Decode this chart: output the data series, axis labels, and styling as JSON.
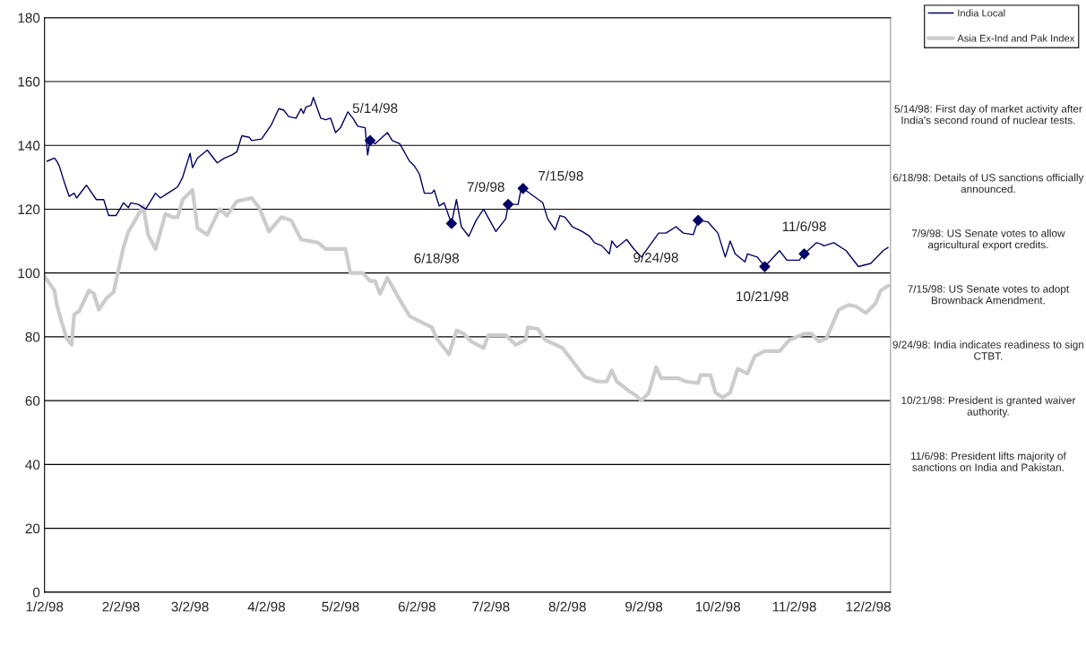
{
  "chart_data": {
    "type": "line",
    "xlim": [
      "1998-01-02",
      "1998-12-11"
    ],
    "ylim": [
      0,
      180
    ],
    "xticks": [
      {
        "value": "1998-01-02",
        "label": "1/2/98"
      },
      {
        "value": "1998-02-02",
        "label": "2/2/98"
      },
      {
        "value": "1998-03-02",
        "label": "3/2/98"
      },
      {
        "value": "1998-04-02",
        "label": "4/2/98"
      },
      {
        "value": "1998-05-02",
        "label": "5/2/98"
      },
      {
        "value": "1998-06-02",
        "label": "6/2/98"
      },
      {
        "value": "1998-07-02",
        "label": "7/2/98"
      },
      {
        "value": "1998-08-02",
        "label": "8/2/98"
      },
      {
        "value": "1998-09-02",
        "label": "9/2/98"
      },
      {
        "value": "1998-10-02",
        "label": "10/2/98"
      },
      {
        "value": "1998-11-02",
        "label": "11/2/98"
      },
      {
        "value": "1998-12-02",
        "label": "12/2/98"
      }
    ],
    "yticks": [
      0,
      20,
      40,
      60,
      80,
      100,
      120,
      140,
      160,
      180
    ],
    "grid": "y",
    "legend": "top right",
    "series": [
      {
        "name": "India Local",
        "color": "#000066",
        "x": [
          "1998-01-03",
          "1998-01-06",
          "1998-01-07",
          "1998-01-08",
          "1998-01-10",
          "1998-01-12",
          "1998-01-14",
          "1998-01-15",
          "1998-01-19",
          "1998-01-23",
          "1998-01-26",
          "1998-01-28",
          "1998-01-31",
          "1998-02-03",
          "1998-02-05",
          "1998-02-06",
          "1998-02-09",
          "1998-02-12",
          "1998-02-16",
          "1998-02-18",
          "1998-02-20",
          "1998-02-23",
          "1998-02-25",
          "1998-02-27",
          "1998-03-02",
          "1998-03-03",
          "1998-03-05",
          "1998-03-09",
          "1998-03-13",
          "1998-03-16",
          "1998-03-19",
          "1998-03-21",
          "1998-03-23",
          "1998-03-26",
          "1998-03-27",
          "1998-03-31",
          "1998-04-04",
          "1998-04-07",
          "1998-04-09",
          "1998-04-11",
          "1998-04-14",
          "1998-04-16",
          "1998-04-17",
          "1998-04-18",
          "1998-04-20",
          "1998-04-21",
          "1998-04-24",
          "1998-04-26",
          "1998-04-28",
          "1998-04-30",
          "1998-05-02",
          "1998-05-05",
          "1998-05-07",
          "1998-05-09",
          "1998-05-12",
          "1998-05-13",
          "1998-05-14",
          "1998-05-16",
          "1998-05-21",
          "1998-05-23",
          "1998-05-26",
          "1998-05-30",
          "1998-06-01",
          "1998-06-03",
          "1998-06-05",
          "1998-06-08",
          "1998-06-09",
          "1998-06-11",
          "1998-06-13",
          "1998-06-16",
          "1998-06-18",
          "1998-06-20",
          "1998-06-23",
          "1998-06-26",
          "1998-06-29",
          "1998-07-04",
          "1998-07-08",
          "1998-07-09",
          "1998-07-13",
          "1998-07-14",
          "1998-07-15",
          "1998-07-23",
          "1998-07-25",
          "1998-07-28",
          "1998-07-30",
          "1998-08-01",
          "1998-08-04",
          "1998-08-08",
          "1998-08-11",
          "1998-08-13",
          "1998-08-16",
          "1998-08-19",
          "1998-08-20",
          "1998-08-22",
          "1998-08-26",
          "1998-08-29",
          "1998-09-01",
          "1998-09-08",
          "1998-09-11",
          "1998-09-15",
          "1998-09-18",
          "1998-09-22",
          "1998-09-24",
          "1998-09-28",
          "1998-10-02",
          "1998-10-05",
          "1998-10-07",
          "1998-10-09",
          "1998-10-13",
          "1998-10-14",
          "1998-10-18",
          "1998-10-21",
          "1998-10-27",
          "1998-10-30",
          "1998-11-04",
          "1998-11-06",
          "1998-11-11",
          "1998-11-13",
          "1998-11-14",
          "1998-11-18",
          "1998-11-23",
          "1998-11-28",
          "1998-12-03",
          "1998-12-08",
          "1998-12-10"
        ],
        "values": [
          135,
          136,
          135,
          133.5,
          128.5,
          124,
          125,
          123.5,
          127.5,
          123,
          123,
          118,
          118,
          122,
          120.5,
          122,
          121.5,
          120,
          125,
          123.5,
          124.5,
          126,
          127,
          130,
          137.5,
          133,
          136,
          138.5,
          134.5,
          136,
          137,
          138,
          143,
          142.5,
          141.5,
          142,
          146.5,
          151.5,
          151,
          149,
          148.5,
          151.5,
          150,
          152,
          152.5,
          155,
          148.5,
          148,
          148.5,
          144,
          145.5,
          150.5,
          148.5,
          146,
          145.5,
          137,
          141.5,
          140.5,
          144,
          141.5,
          140.5,
          135,
          133.5,
          131,
          125,
          125,
          126,
          121,
          122,
          115.5,
          123,
          114.5,
          111.5,
          116.5,
          120,
          113,
          117,
          121.5,
          121.5,
          125.5,
          126.5,
          122,
          117,
          113.5,
          118,
          117.5,
          114.5,
          113,
          111.5,
          109.5,
          108.5,
          106,
          110,
          108,
          110.5,
          107.5,
          105,
          112.5,
          112.5,
          114.5,
          112.5,
          112,
          116.5,
          116,
          112.5,
          105,
          110,
          106,
          103.5,
          106,
          105,
          102,
          107,
          104,
          104,
          106,
          109.5,
          109,
          108.5,
          109.5,
          107,
          102,
          103,
          107,
          108
        ]
      },
      {
        "name": "Asia Ex-Ind and Pak Index",
        "color": "#cccccc",
        "x": [
          "1998-01-02",
          "1998-01-06",
          "1998-01-07",
          "1998-01-09",
          "1998-01-11",
          "1998-01-13",
          "1998-01-14",
          "1998-01-16",
          "1998-01-20",
          "1998-01-22",
          "1998-01-24",
          "1998-01-27",
          "1998-01-30",
          "1998-02-01",
          "1998-02-03",
          "1998-02-05",
          "1998-02-07",
          "1998-02-11",
          "1998-02-13",
          "1998-02-16",
          "1998-02-20",
          "1998-02-23",
          "1998-02-25",
          "1998-02-27",
          "1998-03-03",
          "1998-03-05",
          "1998-03-09",
          "1998-03-14",
          "1998-03-17",
          "1998-03-21",
          "1998-03-27",
          "1998-03-30",
          "1998-04-03",
          "1998-04-08",
          "1998-04-12",
          "1998-04-16",
          "1998-04-23",
          "1998-04-26",
          "1998-05-04",
          "1998-05-06",
          "1998-05-11",
          "1998-05-14",
          "1998-05-16",
          "1998-05-18",
          "1998-05-21",
          "1998-05-25",
          "1998-05-30",
          "1998-06-04",
          "1998-06-08",
          "1998-06-10",
          "1998-06-15",
          "1998-06-18",
          "1998-06-21",
          "1998-06-24",
          "1998-06-29",
          "1998-07-01",
          "1998-07-08",
          "1998-07-12",
          "1998-07-16",
          "1998-07-17",
          "1998-07-21",
          "1998-07-24",
          "1998-07-31",
          "1998-08-05",
          "1998-08-09",
          "1998-08-14",
          "1998-08-18",
          "1998-08-20",
          "1998-08-22",
          "1998-08-27",
          "1998-08-30",
          "1998-09-01",
          "1998-09-04",
          "1998-09-07",
          "1998-09-09",
          "1998-09-16",
          "1998-09-19",
          "1998-09-24",
          "1998-09-25",
          "1998-09-29",
          "1998-10-01",
          "1998-10-04",
          "1998-10-07",
          "1998-10-10",
          "1998-10-14",
          "1998-10-17",
          "1998-10-21",
          "1998-10-27",
          "1998-10-31",
          "1998-11-06",
          "1998-11-09",
          "1998-11-12",
          "1998-11-15",
          "1998-11-20",
          "1998-11-24",
          "1998-11-27",
          "1998-12-01",
          "1998-12-05",
          "1998-12-07",
          "1998-12-10"
        ],
        "values": [
          99,
          94.5,
          90,
          84.5,
          79.5,
          77.5,
          87,
          88,
          94.5,
          93.5,
          88.5,
          92,
          94,
          101,
          108,
          113,
          115.5,
          121,
          112,
          107.5,
          118.5,
          117.5,
          117.5,
          123,
          126,
          114,
          112,
          120,
          118,
          122.5,
          123.5,
          120.5,
          113,
          117.5,
          116.5,
          110.5,
          109.5,
          107.5,
          107.5,
          100,
          100,
          97.5,
          97.5,
          93.5,
          98.5,
          93,
          86.5,
          84.5,
          83,
          79.5,
          74.5,
          82,
          81,
          78.5,
          76.5,
          80.5,
          80.5,
          77.5,
          79,
          83,
          82.5,
          79,
          76.5,
          71.5,
          67.5,
          66,
          66,
          69.5,
          66,
          63,
          61.5,
          60,
          62.5,
          70.5,
          67,
          67,
          66,
          65.5,
          68,
          68,
          62.5,
          61,
          62.5,
          70,
          68.5,
          74,
          75.5,
          75.5,
          79,
          81,
          81,
          78.5,
          79.5,
          88.5,
          90,
          89.5,
          87.5,
          90.5,
          94.5,
          96
        ]
      },
      {
        "type": "scatter",
        "color": "#000066",
        "marker": "diamond",
        "x": [
          "1998-05-14",
          "1998-06-16",
          "1998-07-09",
          "1998-07-15",
          "1998-09-24",
          "1998-10-21",
          "1998-11-06"
        ],
        "values": [
          141.5,
          115.5,
          121.5,
          126.5,
          116.5,
          102,
          106
        ]
      }
    ],
    "annotations": [
      {
        "text": "5/14/98",
        "x": "1998-05-14",
        "y": 141.5
      },
      {
        "text": "6/18/98",
        "x": "1998-06-16",
        "y": 115.5
      },
      {
        "text": "7/9/98",
        "x": "1998-07-09",
        "y": 121.5
      },
      {
        "text": "7/15/98",
        "x": "1998-07-15",
        "y": 126.5
      },
      {
        "text": "9/24/98",
        "x": "1998-09-24",
        "y": 116.5
      },
      {
        "text": "10/21/98",
        "x": "1998-10-21",
        "y": 102
      },
      {
        "text": "11/6/98",
        "x": "1998-11-06",
        "y": 106
      },
      "5/14/98: First day of market activity after India's second round of nuclear tests.",
      "6/18/98: Details of US sanctions officially announced.",
      "7/9/98: US Senate votes to allow agricultural export credits.",
      "7/15/98: US Senate votes to adopt Brownback Amendment.",
      "9/24/98: India indicates readiness to sign CTBT.",
      "10/21/98: President is granted waiver authority.",
      "11/6/98: President lifts majority of sanctions on India and Pakistan."
    ]
  }
}
